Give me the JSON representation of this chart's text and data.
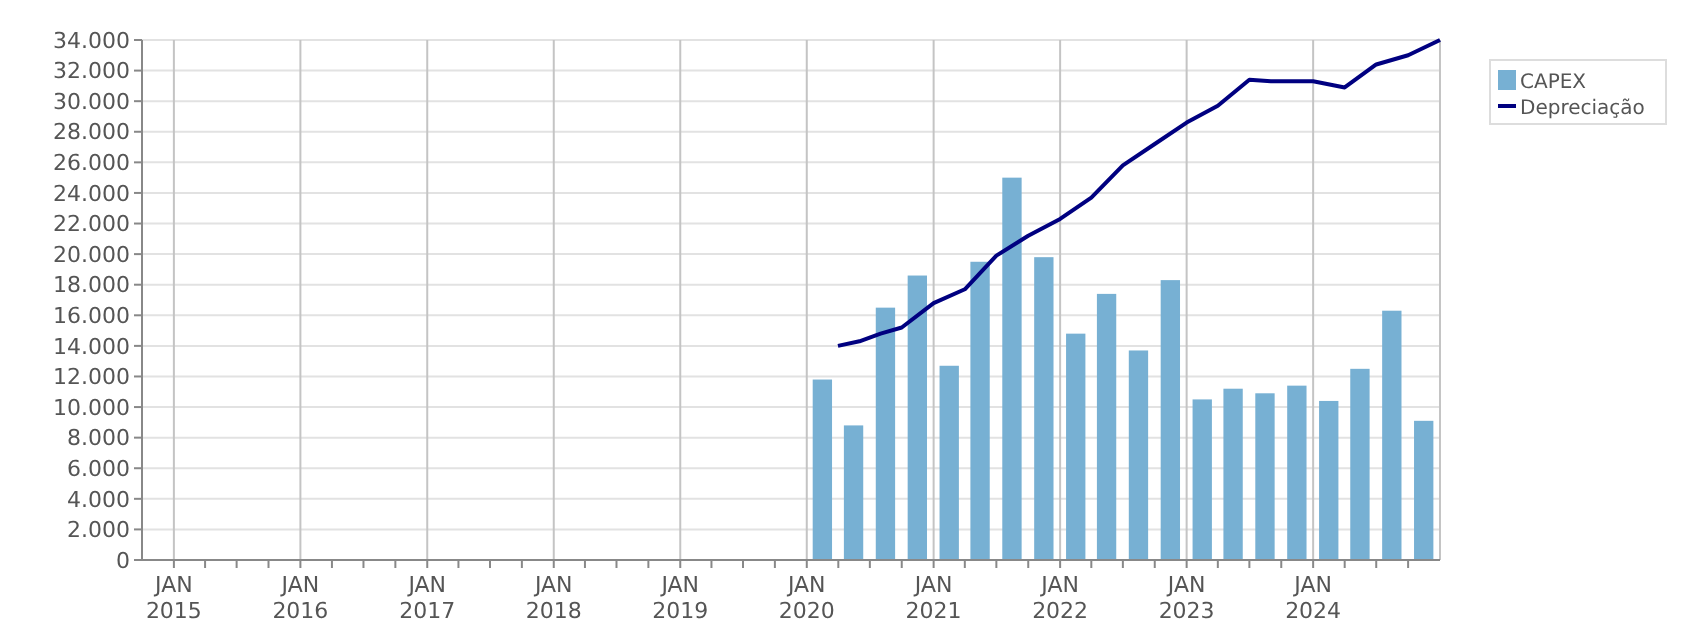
{
  "chart_data": {
    "type": "bar",
    "legend": "right",
    "x": [
      "2020-02-15",
      "2020-05-15",
      "2020-08-15",
      "2020-11-15",
      "2021-02-15",
      "2021-05-15",
      "2021-08-15",
      "2021-11-15",
      "2022-02-15",
      "2022-05-15",
      "2022-08-15",
      "2022-11-15",
      "2023-02-15",
      "2023-05-15",
      "2023-08-15",
      "2023-11-15",
      "2024-02-15",
      "2024-05-15",
      "2024-08-15",
      "2024-11-15"
    ],
    "series": [
      {
        "name": "CAPEX",
        "color": "#77b0d3",
        "values": [
          11800,
          8800,
          16500,
          18600,
          12700,
          19500,
          25000,
          19800,
          14800,
          17400,
          13700,
          18300,
          10500,
          11200,
          10900,
          11400,
          10400,
          12500,
          16300,
          9100
        ]
      },
      {
        "name": "Depreciação",
        "type": "line",
        "color": "#000080",
        "x": [
          "2020-03-31",
          "2020-06-01",
          "2020-08-01",
          "2020-10-01",
          "2021-01-01",
          "2021-04-01",
          "2021-07-01",
          "2021-10-01",
          "2022-01-01",
          "2022-04-01",
          "2022-07-01",
          "2022-10-01",
          "2023-01-01",
          "2023-04-01",
          "2023-07-01",
          "2023-09-01",
          "2024-01-01",
          "2024-04-01",
          "2024-07-01",
          "2024-10-01",
          "2025-01-01"
        ],
        "values": [
          14000,
          14300,
          14800,
          15200,
          16800,
          17700,
          19900,
          21200,
          22300,
          23700,
          25800,
          27200,
          28600,
          29700,
          31400,
          31300,
          31300,
          30900,
          32400,
          33000,
          34000
        ]
      }
    ],
    "xlim": [
      "2014-10-01",
      "2025-01-01"
    ],
    "xticks": [
      {
        "value": "2015-01-01",
        "label": "JAN\n2015"
      },
      {
        "value": "2015-04-01",
        "label": null
      },
      {
        "value": "2015-07-01",
        "label": null
      },
      {
        "value": "2015-10-01",
        "label": null
      },
      {
        "value": "2016-01-01",
        "label": "JAN\n2016"
      },
      {
        "value": "2016-04-01",
        "label": null
      },
      {
        "value": "2016-07-01",
        "label": null
      },
      {
        "value": "2016-10-01",
        "label": null
      },
      {
        "value": "2017-01-01",
        "label": "JAN\n2017"
      },
      {
        "value": "2017-04-01",
        "label": null
      },
      {
        "value": "2017-07-01",
        "label": null
      },
      {
        "value": "2017-10-01",
        "label": null
      },
      {
        "value": "2018-01-01",
        "label": "JAN\n2018"
      },
      {
        "value": "2018-04-01",
        "label": null
      },
      {
        "value": "2018-07-01",
        "label": null
      },
      {
        "value": "2018-10-01",
        "label": null
      },
      {
        "value": "2019-01-01",
        "label": "JAN\n2019"
      },
      {
        "value": "2019-04-01",
        "label": null
      },
      {
        "value": "2019-07-01",
        "label": null
      },
      {
        "value": "2019-10-01",
        "label": null
      },
      {
        "value": "2020-01-01",
        "label": "JAN\n2020"
      },
      {
        "value": "2020-04-01",
        "label": null
      },
      {
        "value": "2020-07-01",
        "label": null
      },
      {
        "value": "2020-10-01",
        "label": null
      },
      {
        "value": "2021-01-01",
        "label": "JAN\n2021"
      },
      {
        "value": "2021-04-01",
        "label": null
      },
      {
        "value": "2021-07-01",
        "label": null
      },
      {
        "value": "2021-10-01",
        "label": null
      },
      {
        "value": "2022-01-01",
        "label": "JAN\n2022"
      },
      {
        "value": "2022-04-01",
        "label": null
      },
      {
        "value": "2022-07-01",
        "label": null
      },
      {
        "value": "2022-10-01",
        "label": null
      },
      {
        "value": "2023-01-01",
        "label": "JAN\n2023"
      },
      {
        "value": "2023-04-01",
        "label": null
      },
      {
        "value": "2023-07-01",
        "label": null
      },
      {
        "value": "2023-10-01",
        "label": null
      },
      {
        "value": "2024-01-01",
        "label": "JAN\n2024"
      },
      {
        "value": "2024-04-01",
        "label": null
      },
      {
        "value": "2024-07-01",
        "label": null
      },
      {
        "value": "2024-10-01",
        "label": null
      }
    ],
    "ylim": [
      0,
      34000
    ],
    "yticks": [
      {
        "value": 0,
        "label": "0"
      },
      {
        "value": 2000,
        "label": "2.000"
      },
      {
        "value": 4000,
        "label": "4.000"
      },
      {
        "value": 6000,
        "label": "6.000"
      },
      {
        "value": 8000,
        "label": "8.000"
      },
      {
        "value": 10000,
        "label": "10.000"
      },
      {
        "value": 12000,
        "label": "12.000"
      },
      {
        "value": 14000,
        "label": "14.000"
      },
      {
        "value": 16000,
        "label": "16.000"
      },
      {
        "value": 18000,
        "label": "18.000"
      },
      {
        "value": 20000,
        "label": "20.000"
      },
      {
        "value": 22000,
        "label": "22.000"
      },
      {
        "value": 24000,
        "label": "24.000"
      },
      {
        "value": 26000,
        "label": "26.000"
      },
      {
        "value": 28000,
        "label": "28.000"
      },
      {
        "value": 30000,
        "label": "30.000"
      },
      {
        "value": 32000,
        "label": "32.000"
      },
      {
        "value": 34000,
        "label": "34.000"
      }
    ],
    "grid": true
  }
}
